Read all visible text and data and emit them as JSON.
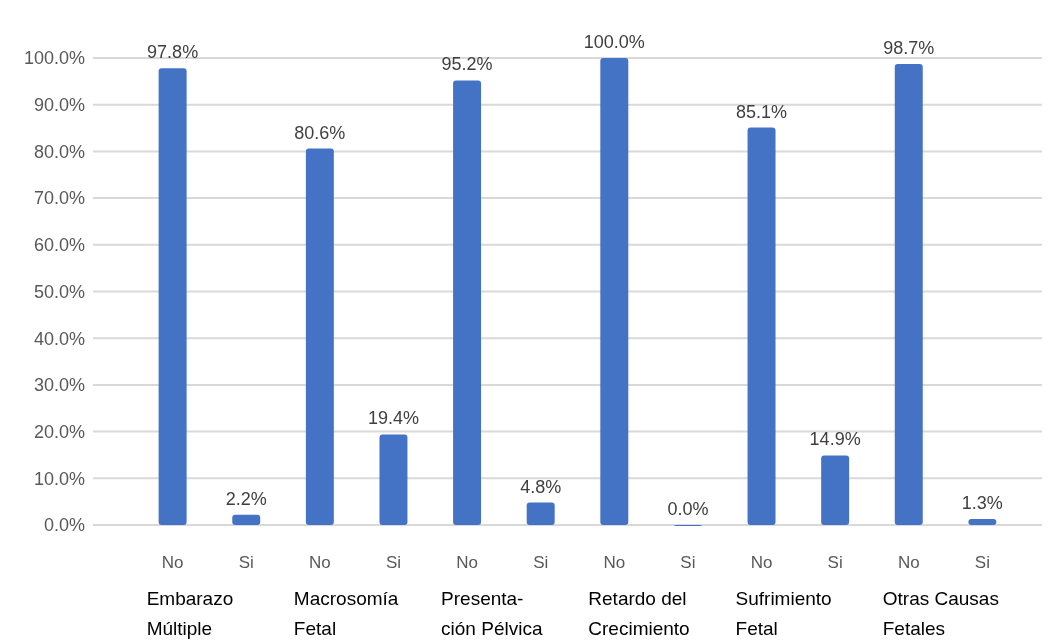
{
  "chart_data": {
    "type": "bar",
    "categories": [
      "No",
      "Si",
      "No",
      "Si",
      "No",
      "Si",
      "No",
      "Si",
      "No",
      "Si",
      "No",
      "Si"
    ],
    "values": [
      97.8,
      2.2,
      80.6,
      19.4,
      95.2,
      4.8,
      100.0,
      0.0,
      85.1,
      14.9,
      98.7,
      1.3
    ],
    "value_labels": [
      "97.8%",
      "2.2%",
      "80.6%",
      "19.4%",
      "95.2%",
      "4.8%",
      "100.0%",
      "0.0%",
      "85.1%",
      "14.9%",
      "98.7%",
      "1.3%"
    ],
    "color": "#4472c4",
    "ylim": [
      0,
      100
    ],
    "yticks": [
      {
        "value": 0,
        "label": "0.0%"
      },
      {
        "value": 10,
        "label": "10.0%"
      },
      {
        "value": 20,
        "label": "20.0%"
      },
      {
        "value": 30,
        "label": "30.0%"
      },
      {
        "value": 40,
        "label": "40.0%"
      },
      {
        "value": 50,
        "label": "50.0%"
      },
      {
        "value": 60,
        "label": "60.0%"
      },
      {
        "value": 70,
        "label": "70.0%"
      },
      {
        "value": 80,
        "label": "80.0%"
      },
      {
        "value": 90,
        "label": "90.0%"
      },
      {
        "value": 100,
        "label": "100.0%"
      }
    ],
    "grid": "y",
    "annotations": [
      "Embarazo\nMúltiple",
      "Macrosomía\nFetal",
      "Presenta-\nción Pélvica",
      "Retardo del\nCrecimiento",
      "Sufrimiento\nFetal",
      "Otras Causas\nFetales"
    ]
  }
}
